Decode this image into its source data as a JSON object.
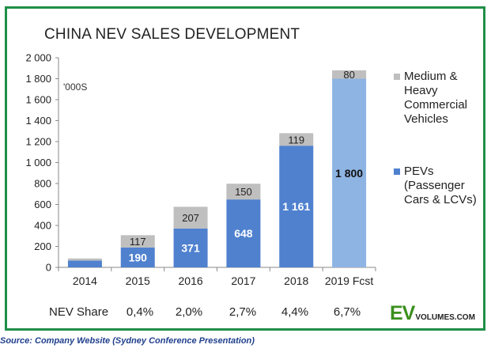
{
  "chart_data": {
    "type": "bar",
    "stacked": true,
    "title": "CHINA NEV SALES DEVELOPMENT",
    "unit_label": "'000S",
    "categories": [
      "2014",
      "2015",
      "2016",
      "2017",
      "2018",
      "2019 Fcst"
    ],
    "series": [
      {
        "name": "PEVs (Passenger Cars & LCVs)",
        "values": [
          65,
          190,
          371,
          648,
          1161,
          1800
        ],
        "labels": [
          "",
          "190",
          "371",
          "648",
          "1 161",
          "1 800"
        ],
        "color": "#4f81cf",
        "forecast_color": "#8eb4e3"
      },
      {
        "name": "Medium & Heavy Commercial Vehicles",
        "values": [
          20,
          117,
          207,
          150,
          119,
          80
        ],
        "labels": [
          "",
          "117",
          "207",
          "150",
          "119",
          "80"
        ],
        "color": "#bfbfbf"
      }
    ],
    "ylim": [
      0,
      2000
    ],
    "yticks": [
      0,
      200,
      400,
      600,
      800,
      1000,
      1200,
      1400,
      1600,
      1800,
      2000
    ],
    "ytick_labels": [
      "0",
      "200",
      "400",
      "600",
      "800",
      "1 000",
      "1 200",
      "1 400",
      "1 600",
      "1 800",
      "2 000"
    ],
    "grid": false,
    "legend_position": "right"
  },
  "legend": {
    "mhcv": "Medium & Heavy Commercial Vehicles",
    "pev": "PEVs (Passenger Cars & LCVs)"
  },
  "nev_share": {
    "label": "NEV Share",
    "values": [
      "0,4%",
      "2,0%",
      "2,7%",
      "4,4%",
      "6,7%"
    ]
  },
  "logo": {
    "ev": "EV",
    "rest": "VOLUMES.COM"
  },
  "source": "Source: Company Website (Sydney Conference Presentation)"
}
